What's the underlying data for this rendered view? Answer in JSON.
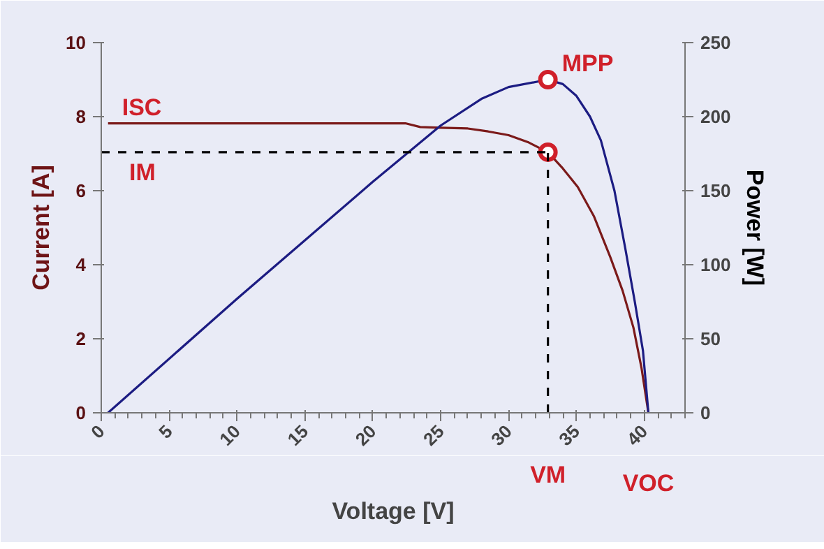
{
  "chart_data": {
    "type": "line",
    "xlabel": "Voltage [V]",
    "ylabel": "Current [A]",
    "y2label": "Power [W]",
    "xlim": [
      0,
      43
    ],
    "xticks": [
      0,
      5,
      10,
      15,
      20,
      25,
      30,
      35,
      40
    ],
    "ylim": [
      0,
      10
    ],
    "yticks": [
      0,
      2,
      4,
      6,
      8,
      10
    ],
    "y2lim": [
      0,
      250
    ],
    "y2ticks": [
      0,
      50,
      100,
      150,
      200,
      250
    ],
    "grid": false,
    "marker": "none",
    "line_style": "solid",
    "series": [
      {
        "color": "#7b1a1a",
        "x": [
          0.5,
          22.4,
          23.5,
          25,
          27,
          28.5,
          30,
          31.5,
          32.9,
          34,
          35.1,
          36.3,
          37.5,
          38.4,
          39.2,
          39.8,
          40.3
        ],
        "values": [
          7.82,
          7.82,
          7.72,
          7.7,
          7.68,
          7.6,
          7.5,
          7.3,
          7.04,
          6.6,
          6.1,
          5.3,
          4.2,
          3.3,
          2.3,
          1.2,
          0
        ]
      },
      {
        "color": "#1c1c82",
        "axis": "y2",
        "x": [
          0.5,
          10,
          20,
          25,
          28,
          30,
          32.9,
          34,
          35,
          36,
          36.8,
          37.8,
          38.6,
          39.3,
          39.9,
          40.3
        ],
        "values": [
          0,
          77,
          156,
          194,
          212,
          220,
          225,
          222,
          214,
          200,
          184,
          150,
          111,
          75,
          42,
          0
        ]
      },
      {
        "type": "scatter",
        "color": "#d0202a",
        "marker": "circle",
        "x": [
          32.9
        ],
        "values": [
          7.04
        ]
      },
      {
        "type": "scatter",
        "color": "#d0202a",
        "marker": "circle",
        "axis": "y2",
        "x": [
          32.9
        ],
        "values": [
          225
        ]
      }
    ],
    "ref_lines": [
      {
        "axis": "y",
        "value": 7.04,
        "label": "IM",
        "color": "#000000",
        "line_style": "dashed"
      },
      {
        "axis": "x",
        "value": 32.9,
        "label": "VM",
        "color": "#000000",
        "line_style": "dashed"
      }
    ],
    "annotations": [
      {
        "text": "ISC",
        "x": 0.5,
        "y": 7.82
      },
      {
        "text": "MPP",
        "x": 32.9,
        "y": 9.0
      },
      {
        "text": "VOC",
        "x": 40.3,
        "y": 0
      }
    ]
  }
}
